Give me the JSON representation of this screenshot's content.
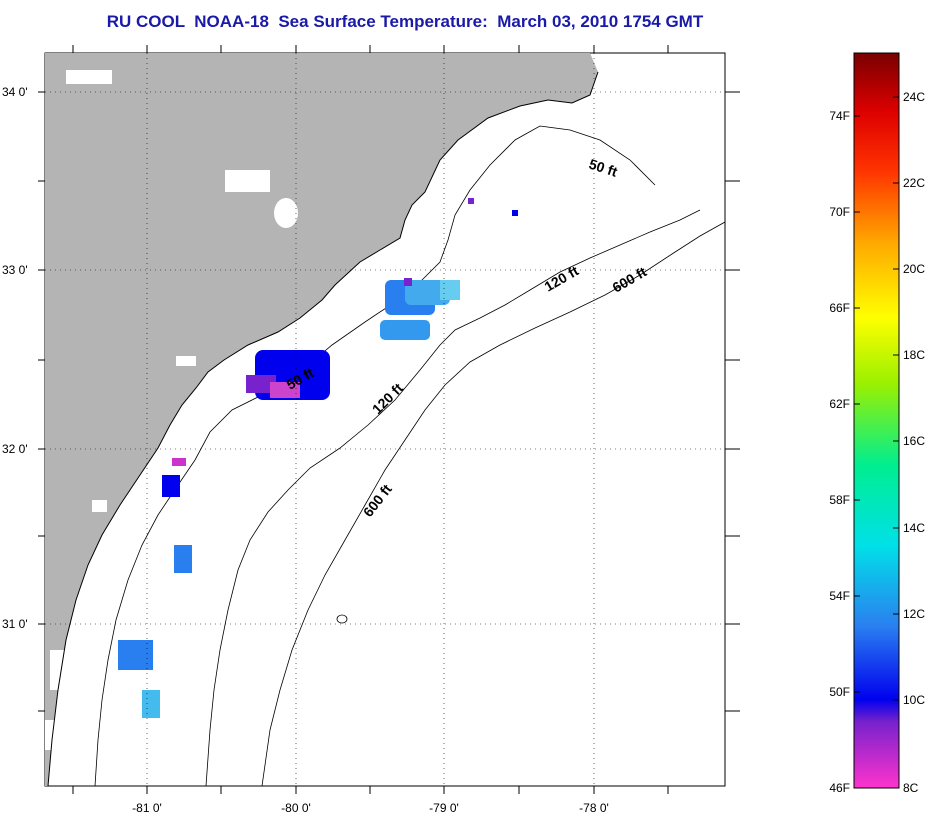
{
  "title": "RU COOL  NOAA-18  Sea Surface Temperature:  March 03, 2010 1754 GMT",
  "map": {
    "lat_labels": [
      "34 0'",
      "33 0'",
      "32 0'",
      "31 0'"
    ],
    "lon_labels": [
      "-81 0'",
      "-80 0'",
      "-79 0'",
      "-78 0'"
    ],
    "contour_labels": [
      "50 ft",
      "120 ft",
      "600 ft",
      "50 ft",
      "120 ft",
      "600 ft"
    ],
    "colors": {
      "land": "#b4b4b4",
      "cloud_gap": "#ffffff",
      "grid": "#000000"
    }
  },
  "colorbar": {
    "fahrenheit_labels": [
      "74F",
      "70F",
      "66F",
      "62F",
      "58F",
      "54F",
      "50F",
      "46F"
    ],
    "celsius_labels": [
      "24C",
      "22C",
      "20C",
      "18C",
      "16C",
      "14C",
      "12C",
      "10C",
      "8C"
    ],
    "colors_bottom_to_top": [
      "#ff33cc",
      "#7722cc",
      "#0000ee",
      "#2a7ff0",
      "#00e0e8",
      "#00ee90",
      "#9af000",
      "#ffff00",
      "#ffaa00",
      "#ff3300",
      "#dd0000",
      "#7a0000"
    ]
  }
}
